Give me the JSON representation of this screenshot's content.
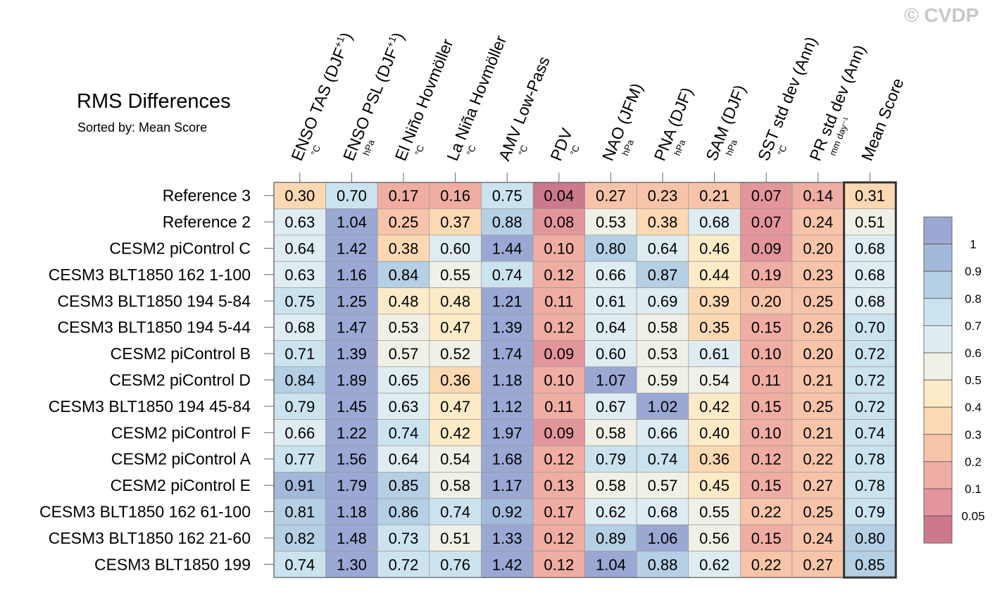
{
  "header": {
    "title": "RMS Differences",
    "subtitle": "Sorted by: Mean Score",
    "watermark": "© CVDP"
  },
  "chart_data": {
    "type": "heatmap",
    "title": "RMS Differences",
    "subtitle": "Sorted by: Mean Score",
    "columns": [
      {
        "name": "ENSO TAS (DJF",
        "sup": "+1",
        "close": ")",
        "unit": "°C"
      },
      {
        "name": "ENSO PSL (DJF",
        "sup": "+1",
        "close": ")",
        "unit": "hPa"
      },
      {
        "name": "El Niño Hovmöller",
        "sup": "",
        "close": "",
        "unit": "°C"
      },
      {
        "name": "La Niña Hovmöller",
        "sup": "",
        "close": "",
        "unit": "°C"
      },
      {
        "name": "AMV Low-Pass",
        "sup": "",
        "close": "",
        "unit": "°C"
      },
      {
        "name": "PDV",
        "sup": "",
        "close": "",
        "unit": "°C"
      },
      {
        "name": "NAO (JFM)",
        "sup": "",
        "close": "",
        "unit": "hPa"
      },
      {
        "name": "PNA (DJF)",
        "sup": "",
        "close": "",
        "unit": "hPa"
      },
      {
        "name": "SAM (DJF)",
        "sup": "",
        "close": "",
        "unit": "hPa"
      },
      {
        "name": "SST std dev (Ann)",
        "sup": "",
        "close": "",
        "unit": "°C"
      },
      {
        "name": "PR std dev (Ann)",
        "sup": "",
        "close": "",
        "unit": "mm day⁻¹"
      },
      {
        "name": "Mean Score",
        "sup": "",
        "close": "",
        "unit": ""
      }
    ],
    "rows": [
      {
        "label": "Reference 3",
        "values": [
          0.3,
          0.7,
          0.17,
          0.16,
          0.75,
          0.04,
          0.27,
          0.23,
          0.21,
          0.07,
          0.14,
          0.31
        ]
      },
      {
        "label": "Reference 2",
        "values": [
          0.63,
          1.04,
          0.25,
          0.37,
          0.88,
          0.08,
          0.53,
          0.38,
          0.68,
          0.07,
          0.24,
          0.51
        ]
      },
      {
        "label": "CESM2 piControl C",
        "values": [
          0.64,
          1.42,
          0.38,
          0.6,
          1.44,
          0.1,
          0.8,
          0.64,
          0.46,
          0.09,
          0.2,
          0.68
        ]
      },
      {
        "label": "CESM3 BLT1850 162 1-100",
        "values": [
          0.63,
          1.16,
          0.84,
          0.55,
          0.74,
          0.12,
          0.66,
          0.87,
          0.44,
          0.19,
          0.23,
          0.68
        ]
      },
      {
        "label": "CESM3 BLT1850 194 5-84",
        "values": [
          0.75,
          1.25,
          0.48,
          0.48,
          1.21,
          0.11,
          0.61,
          0.69,
          0.39,
          0.2,
          0.25,
          0.68
        ]
      },
      {
        "label": "CESM3 BLT1850 194 5-44",
        "values": [
          0.68,
          1.47,
          0.53,
          0.47,
          1.39,
          0.12,
          0.64,
          0.58,
          0.35,
          0.15,
          0.26,
          0.7
        ]
      },
      {
        "label": "CESM2 piControl B",
        "values": [
          0.71,
          1.39,
          0.57,
          0.52,
          1.74,
          0.09,
          0.6,
          0.53,
          0.61,
          0.1,
          0.2,
          0.72
        ]
      },
      {
        "label": "CESM2 piControl D",
        "values": [
          0.84,
          1.89,
          0.65,
          0.36,
          1.18,
          0.1,
          1.07,
          0.59,
          0.54,
          0.11,
          0.21,
          0.72
        ]
      },
      {
        "label": "CESM3 BLT1850 194 45-84",
        "values": [
          0.79,
          1.45,
          0.63,
          0.47,
          1.12,
          0.11,
          0.67,
          1.02,
          0.42,
          0.15,
          0.25,
          0.72
        ]
      },
      {
        "label": "CESM2 piControl F",
        "values": [
          0.66,
          1.22,
          0.74,
          0.42,
          1.97,
          0.09,
          0.58,
          0.66,
          0.4,
          0.1,
          0.21,
          0.74
        ]
      },
      {
        "label": "CESM2 piControl A",
        "values": [
          0.77,
          1.56,
          0.64,
          0.54,
          1.68,
          0.12,
          0.79,
          0.74,
          0.36,
          0.12,
          0.22,
          0.78
        ]
      },
      {
        "label": "CESM2 piControl E",
        "values": [
          0.91,
          1.79,
          0.85,
          0.58,
          1.17,
          0.13,
          0.58,
          0.57,
          0.45,
          0.15,
          0.27,
          0.78
        ]
      },
      {
        "label": "CESM3 BLT1850 162 61-100",
        "values": [
          0.81,
          1.18,
          0.86,
          0.74,
          0.92,
          0.17,
          0.62,
          0.68,
          0.55,
          0.22,
          0.25,
          0.79
        ]
      },
      {
        "label": "CESM3 BLT1850 162 21-60",
        "values": [
          0.82,
          1.48,
          0.73,
          0.51,
          1.33,
          0.12,
          0.89,
          1.06,
          0.56,
          0.15,
          0.24,
          0.8
        ]
      },
      {
        "label": "CESM3 BLT1850 199",
        "values": [
          0.74,
          1.3,
          0.72,
          0.76,
          1.42,
          0.12,
          1.04,
          0.88,
          0.62,
          0.22,
          0.27,
          0.85
        ]
      }
    ],
    "colorbar": {
      "levels": [
        0.05,
        0.1,
        0.2,
        0.3,
        0.4,
        0.5,
        0.6,
        0.7,
        0.8,
        0.9,
        1
      ],
      "labels": [
        "0.05",
        "0.1",
        "0.2",
        "0.3",
        "0.4",
        "0.5",
        "0.6",
        "0.7",
        "0.8",
        "0.9",
        "1"
      ],
      "colors": [
        "#cc7a8b",
        "#e3959c",
        "#efada3",
        "#f7c4a9",
        "#fcd9b3",
        "#fdeac7",
        "#f1f0e6",
        "#dfecf1",
        "#cbe3ee",
        "#b5cfe4",
        "#a3b9db",
        "#9ba8d4"
      ]
    }
  }
}
